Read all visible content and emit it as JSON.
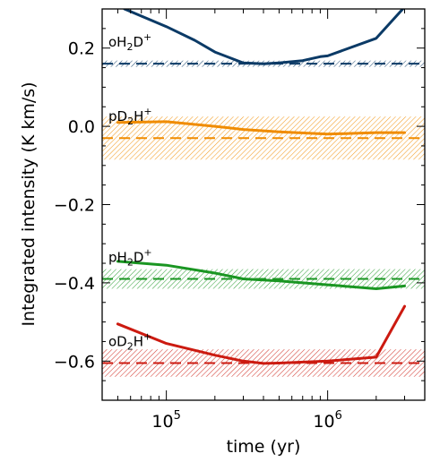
{
  "chart_data": {
    "type": "line",
    "xlabel": "time (yr)",
    "ylabel": "Integrated intensity (K km/s)",
    "x_scale": "log",
    "xlim": [
      40000,
      4000000
    ],
    "ylim": [
      -0.7,
      0.3
    ],
    "x_ticks": [
      {
        "value": 100000,
        "base": "10",
        "exp": "5"
      },
      {
        "value": 1000000,
        "base": "10",
        "exp": "6"
      }
    ],
    "y_ticks": [
      {
        "value": 0.2,
        "label": "0.2"
      },
      {
        "value": 0.0,
        "label": "0.0"
      },
      {
        "value": -0.2,
        "label": "−0.2"
      },
      {
        "value": -0.4,
        "label": "−0.4"
      },
      {
        "value": -0.6,
        "label": "−0.6"
      }
    ],
    "series": [
      {
        "key": "oH2D",
        "label_main": "oH",
        "label_sub1": "2",
        "label_mid": "D",
        "label_sup": "+",
        "color": "#0b3a66",
        "observed": 0.16,
        "band": [
          0.152,
          0.168
        ],
        "x": [
          55000,
          100000,
          150000,
          200000,
          300000,
          400000,
          500000,
          700000,
          900000,
          1000000,
          2000000,
          3000000
        ],
        "y": [
          0.3,
          0.255,
          0.22,
          0.19,
          0.162,
          0.16,
          0.162,
          0.168,
          0.178,
          0.18,
          0.225,
          0.305
        ]
      },
      {
        "key": "pD2H",
        "label_main": "pD",
        "label_sub1": "2",
        "label_mid": "H",
        "label_sup": "+",
        "color": "#f08c00",
        "observed": -0.03,
        "band": [
          -0.085,
          0.025
        ],
        "x": [
          50000,
          100000,
          200000,
          300000,
          500000,
          1000000,
          2000000,
          3000000
        ],
        "y": [
          0.01,
          0.012,
          0.0,
          -0.008,
          -0.014,
          -0.02,
          -0.016,
          -0.016
        ]
      },
      {
        "key": "pH2D",
        "label_main": "pH",
        "label_sub1": "2",
        "label_mid": "D",
        "label_sup": "+",
        "color": "#1a9622",
        "observed": -0.39,
        "band": [
          -0.415,
          -0.365
        ],
        "x": [
          50000,
          100000,
          200000,
          300000,
          500000,
          1000000,
          2000000,
          3000000
        ],
        "y": [
          -0.345,
          -0.355,
          -0.375,
          -0.39,
          -0.395,
          -0.405,
          -0.415,
          -0.408
        ]
      },
      {
        "key": "oD2H",
        "label_main": "oD",
        "label_sub1": "2",
        "label_mid": "H",
        "label_sup": "+",
        "color": "#cc1a10",
        "observed": -0.605,
        "band": [
          -0.64,
          -0.57
        ],
        "x": [
          50000,
          100000,
          200000,
          300000,
          400000,
          500000,
          1000000,
          2000000,
          3000000
        ],
        "y": [
          -0.505,
          -0.555,
          -0.585,
          -0.6,
          -0.606,
          -0.605,
          -0.6,
          -0.59,
          -0.46
        ]
      }
    ]
  }
}
